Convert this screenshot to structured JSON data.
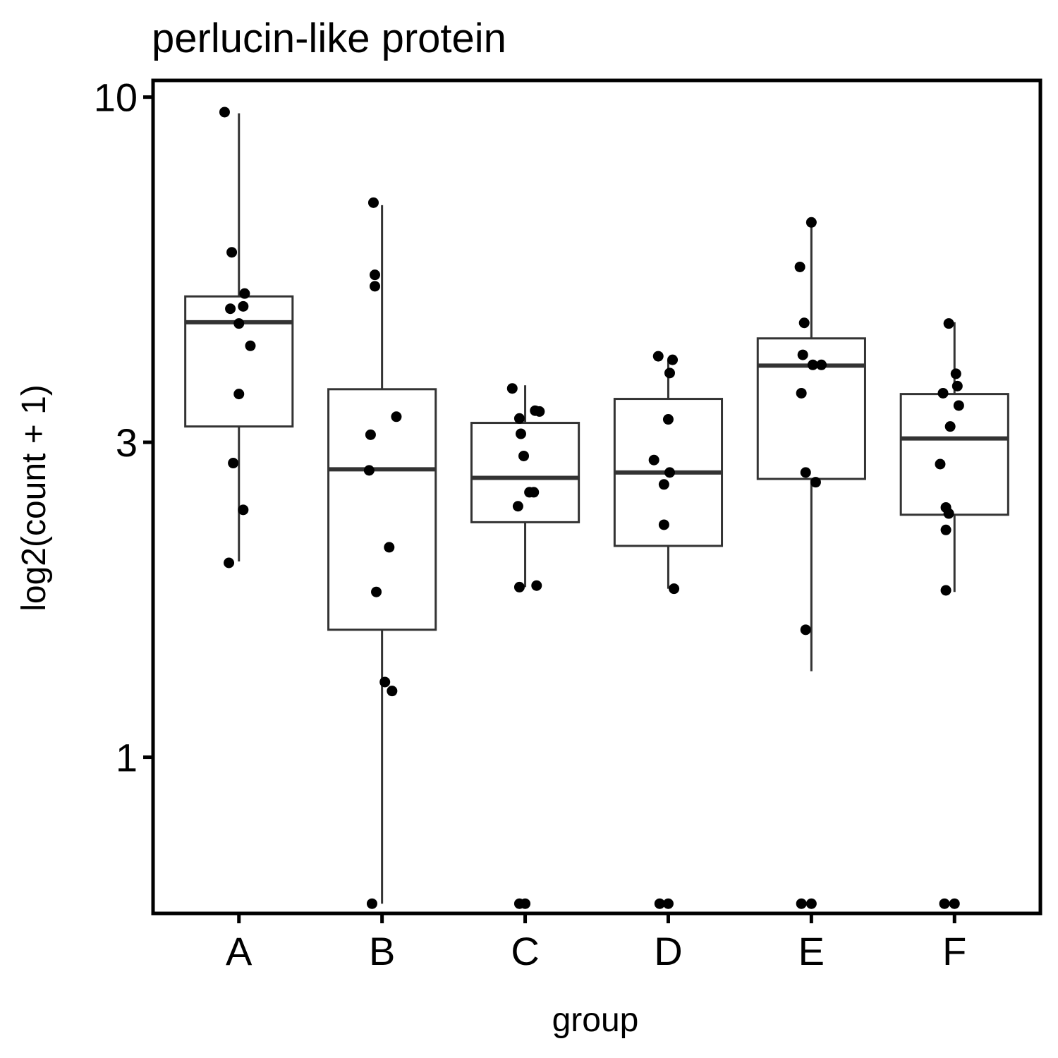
{
  "chart_data": {
    "type": "box",
    "title": "perlucin-like protein",
    "xlabel": "group",
    "ylabel": "log2(count + 1)",
    "y_scale": "log",
    "y_ticks": [
      1,
      3,
      10
    ],
    "y_tick_labels": [
      "1",
      "3",
      "10"
    ],
    "ylim": [
      0.58,
      10.6
    ],
    "grid": false,
    "categories": [
      "A",
      "B",
      "C",
      "D",
      "E",
      "F"
    ],
    "boxes": [
      {
        "group": "A",
        "whisker_low": 1.98,
        "q1": 3.17,
        "median": 4.56,
        "q3": 4.99,
        "whisker_high": 9.45
      },
      {
        "group": "B",
        "whisker_low": 0.6,
        "q1": 1.56,
        "median": 2.73,
        "q3": 3.61,
        "whisker_high": 6.86
      },
      {
        "group": "C",
        "whisker_low": 1.81,
        "q1": 2.27,
        "median": 2.65,
        "q3": 3.21,
        "whisker_high": 3.66
      },
      {
        "group": "D",
        "whisker_low": 1.8,
        "q1": 2.09,
        "median": 2.7,
        "q3": 3.49,
        "whisker_high": 4.0
      },
      {
        "group": "E",
        "whisker_low": 1.35,
        "q1": 2.64,
        "median": 3.92,
        "q3": 4.31,
        "whisker_high": 6.41
      },
      {
        "group": "F",
        "whisker_low": 1.78,
        "q1": 2.33,
        "median": 3.04,
        "q3": 3.55,
        "whisker_high": 4.56
      }
    ],
    "points": [
      {
        "group": "A",
        "jitter": -0.1,
        "y": 9.49
      },
      {
        "group": "A",
        "jitter": -0.05,
        "y": 5.82
      },
      {
        "group": "A",
        "jitter": 0.04,
        "y": 5.04
      },
      {
        "group": "A",
        "jitter": -0.06,
        "y": 4.78
      },
      {
        "group": "A",
        "jitter": 0.03,
        "y": 4.82
      },
      {
        "group": "A",
        "jitter": 0.0,
        "y": 4.54
      },
      {
        "group": "A",
        "jitter": 0.08,
        "y": 4.2
      },
      {
        "group": "A",
        "jitter": 0.0,
        "y": 3.55
      },
      {
        "group": "A",
        "jitter": -0.04,
        "y": 2.79
      },
      {
        "group": "A",
        "jitter": 0.03,
        "y": 2.37
      },
      {
        "group": "A",
        "jitter": -0.07,
        "y": 1.97
      },
      {
        "group": "B",
        "jitter": -0.06,
        "y": 6.92
      },
      {
        "group": "B",
        "jitter": -0.05,
        "y": 5.38
      },
      {
        "group": "B",
        "jitter": -0.05,
        "y": 5.17
      },
      {
        "group": "B",
        "jitter": 0.1,
        "y": 3.28
      },
      {
        "group": "B",
        "jitter": -0.08,
        "y": 3.08
      },
      {
        "group": "B",
        "jitter": -0.09,
        "y": 2.72
      },
      {
        "group": "B",
        "jitter": 0.05,
        "y": 2.08
      },
      {
        "group": "B",
        "jitter": -0.04,
        "y": 1.78
      },
      {
        "group": "B",
        "jitter": 0.02,
        "y": 1.3
      },
      {
        "group": "B",
        "jitter": 0.07,
        "y": 1.26
      },
      {
        "group": "B",
        "jitter": -0.07,
        "y": 0.6
      },
      {
        "group": "C",
        "jitter": -0.09,
        "y": 3.62
      },
      {
        "group": "C",
        "jitter": 0.07,
        "y": 3.35
      },
      {
        "group": "C",
        "jitter": 0.1,
        "y": 3.34
      },
      {
        "group": "C",
        "jitter": -0.04,
        "y": 3.26
      },
      {
        "group": "C",
        "jitter": -0.03,
        "y": 3.09
      },
      {
        "group": "C",
        "jitter": -0.01,
        "y": 2.86
      },
      {
        "group": "C",
        "jitter": 0.03,
        "y": 2.52
      },
      {
        "group": "C",
        "jitter": 0.06,
        "y": 2.52
      },
      {
        "group": "C",
        "jitter": -0.05,
        "y": 2.4
      },
      {
        "group": "C",
        "jitter": -0.04,
        "y": 1.81
      },
      {
        "group": "C",
        "jitter": 0.08,
        "y": 1.82
      },
      {
        "group": "C",
        "jitter": -0.04,
        "y": 0.6
      },
      {
        "group": "C",
        "jitter": 0.0,
        "y": 0.6
      },
      {
        "group": "D",
        "jitter": -0.07,
        "y": 4.05
      },
      {
        "group": "D",
        "jitter": 0.03,
        "y": 4.0
      },
      {
        "group": "D",
        "jitter": 0.01,
        "y": 3.82
      },
      {
        "group": "D",
        "jitter": 0.0,
        "y": 3.25
      },
      {
        "group": "D",
        "jitter": -0.1,
        "y": 2.82
      },
      {
        "group": "D",
        "jitter": 0.01,
        "y": 2.7
      },
      {
        "group": "D",
        "jitter": -0.03,
        "y": 2.59
      },
      {
        "group": "D",
        "jitter": -0.03,
        "y": 2.25
      },
      {
        "group": "D",
        "jitter": 0.04,
        "y": 1.8
      },
      {
        "group": "D",
        "jitter": -0.06,
        "y": 0.6
      },
      {
        "group": "D",
        "jitter": 0.0,
        "y": 0.6
      },
      {
        "group": "E",
        "jitter": 0.0,
        "y": 6.46
      },
      {
        "group": "E",
        "jitter": -0.08,
        "y": 5.53
      },
      {
        "group": "E",
        "jitter": -0.05,
        "y": 4.55
      },
      {
        "group": "E",
        "jitter": -0.06,
        "y": 4.07
      },
      {
        "group": "E",
        "jitter": 0.01,
        "y": 3.93
      },
      {
        "group": "E",
        "jitter": 0.07,
        "y": 3.93
      },
      {
        "group": "E",
        "jitter": -0.07,
        "y": 3.56
      },
      {
        "group": "E",
        "jitter": -0.04,
        "y": 2.7
      },
      {
        "group": "E",
        "jitter": 0.03,
        "y": 2.61
      },
      {
        "group": "E",
        "jitter": -0.04,
        "y": 1.56
      },
      {
        "group": "E",
        "jitter": -0.07,
        "y": 0.6
      },
      {
        "group": "E",
        "jitter": 0.0,
        "y": 0.6
      },
      {
        "group": "F",
        "jitter": -0.04,
        "y": 4.54
      },
      {
        "group": "F",
        "jitter": 0.01,
        "y": 3.81
      },
      {
        "group": "F",
        "jitter": 0.02,
        "y": 3.65
      },
      {
        "group": "F",
        "jitter": -0.08,
        "y": 3.56
      },
      {
        "group": "F",
        "jitter": 0.03,
        "y": 3.41
      },
      {
        "group": "F",
        "jitter": -0.03,
        "y": 3.17
      },
      {
        "group": "F",
        "jitter": -0.1,
        "y": 2.78
      },
      {
        "group": "F",
        "jitter": -0.06,
        "y": 2.39
      },
      {
        "group": "F",
        "jitter": -0.04,
        "y": 2.34
      },
      {
        "group": "F",
        "jitter": -0.06,
        "y": 2.21
      },
      {
        "group": "F",
        "jitter": -0.06,
        "y": 1.79
      },
      {
        "group": "F",
        "jitter": -0.07,
        "y": 0.6
      },
      {
        "group": "F",
        "jitter": 0.0,
        "y": 0.6
      }
    ]
  }
}
